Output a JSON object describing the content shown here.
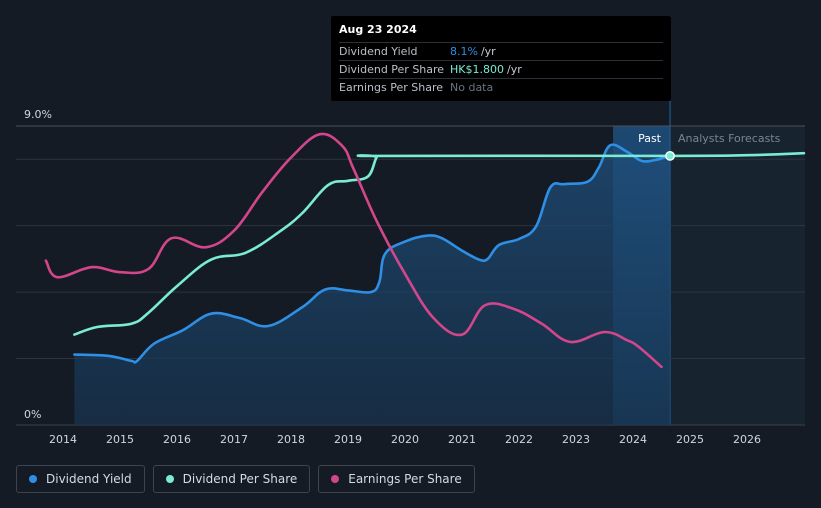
{
  "colors": {
    "background": "#151b24",
    "dividend_yield": "#2e8fe5",
    "dividend_per_share": "#79ecd3",
    "earnings_per_share": "#d3468b",
    "forecast_band": "#1a3d60"
  },
  "tooltip": {
    "date": "Aug 23 2024",
    "rows": [
      {
        "label": "Dividend Yield",
        "value": "8.1%",
        "unit": "/yr",
        "color": "#2e8fe5"
      },
      {
        "label": "Dividend Per Share",
        "value": "HK$1.800",
        "unit": "/yr",
        "color": "#79ecd3"
      },
      {
        "label": "Earnings Per Share",
        "value": "No data",
        "unit": "",
        "color": "#6b737d"
      }
    ]
  },
  "regions": {
    "past_label": "Past",
    "forecast_label": "Analysts Forecasts"
  },
  "legend": [
    {
      "label": "Dividend Yield",
      "color": "#2e8fe5"
    },
    {
      "label": "Dividend Per Share",
      "color": "#79ecd3"
    },
    {
      "label": "Earnings Per Share",
      "color": "#d3468b"
    }
  ],
  "chart_data": {
    "type": "line",
    "x_range": [
      2013.2,
      2027.0
    ],
    "y_range": [
      0,
      9
    ],
    "y_labels": [
      "9.0%",
      "0%"
    ],
    "x_ticks": [
      "2014",
      "2015",
      "2016",
      "2017",
      "2018",
      "2019",
      "2020",
      "2021",
      "2022",
      "2023",
      "2024",
      "2025",
      "2026"
    ],
    "highlight_from": 2023.65,
    "present_date": 2024.65,
    "series": [
      {
        "name": "Dividend Yield",
        "color": "#2e8fe5",
        "area": true,
        "points": [
          [
            2014.2,
            2.12
          ],
          [
            2014.8,
            2.08
          ],
          [
            2015.2,
            1.93
          ],
          [
            2015.3,
            1.93
          ],
          [
            2015.6,
            2.45
          ],
          [
            2016.1,
            2.85
          ],
          [
            2016.6,
            3.35
          ],
          [
            2017.1,
            3.22
          ],
          [
            2017.6,
            2.98
          ],
          [
            2018.2,
            3.55
          ],
          [
            2018.6,
            4.08
          ],
          [
            2019.0,
            4.05
          ],
          [
            2019.4,
            4.0
          ],
          [
            2019.55,
            4.3
          ],
          [
            2019.65,
            5.15
          ],
          [
            2020.0,
            5.52
          ],
          [
            2020.4,
            5.7
          ],
          [
            2020.65,
            5.62
          ],
          [
            2021.0,
            5.25
          ],
          [
            2021.3,
            4.98
          ],
          [
            2021.45,
            5.0
          ],
          [
            2021.65,
            5.42
          ],
          [
            2022.0,
            5.6
          ],
          [
            2022.3,
            5.98
          ],
          [
            2022.55,
            7.15
          ],
          [
            2022.8,
            7.25
          ],
          [
            2023.2,
            7.32
          ],
          [
            2023.4,
            7.75
          ],
          [
            2023.6,
            8.42
          ],
          [
            2023.9,
            8.22
          ],
          [
            2024.15,
            7.95
          ],
          [
            2024.4,
            7.98
          ],
          [
            2024.65,
            8.1
          ]
        ]
      },
      {
        "name": "Dividend Per Share",
        "color": "#79ecd3",
        "area": false,
        "points": [
          [
            2014.2,
            2.72
          ],
          [
            2014.6,
            2.95
          ],
          [
            2015.2,
            3.05
          ],
          [
            2015.5,
            3.38
          ],
          [
            2016.0,
            4.18
          ],
          [
            2016.6,
            4.98
          ],
          [
            2017.2,
            5.18
          ],
          [
            2017.8,
            5.82
          ],
          [
            2018.2,
            6.38
          ],
          [
            2018.65,
            7.22
          ],
          [
            2019.0,
            7.35
          ],
          [
            2019.35,
            7.48
          ],
          [
            2019.5,
            8.05
          ],
          [
            2019.6,
            8.1
          ],
          [
            2024.65,
            8.1
          ],
          [
            2026.0,
            8.12
          ],
          [
            2027.0,
            8.18
          ]
        ]
      },
      {
        "name": "Earnings Per Share",
        "color": "#d3468b",
        "area": false,
        "points": [
          [
            2013.7,
            4.95
          ],
          [
            2013.9,
            4.45
          ],
          [
            2014.5,
            4.75
          ],
          [
            2015.0,
            4.6
          ],
          [
            2015.5,
            4.7
          ],
          [
            2015.9,
            5.62
          ],
          [
            2016.5,
            5.35
          ],
          [
            2017.0,
            5.85
          ],
          [
            2017.5,
            7.02
          ],
          [
            2018.0,
            8.05
          ],
          [
            2018.5,
            8.75
          ],
          [
            2018.9,
            8.4
          ],
          [
            2019.1,
            7.7
          ],
          [
            2019.5,
            6.15
          ],
          [
            2020.0,
            4.55
          ],
          [
            2020.5,
            3.22
          ],
          [
            2021.0,
            2.72
          ],
          [
            2021.4,
            3.6
          ],
          [
            2021.9,
            3.5
          ],
          [
            2022.4,
            3.05
          ],
          [
            2022.9,
            2.5
          ],
          [
            2023.5,
            2.8
          ],
          [
            2023.9,
            2.55
          ],
          [
            2024.1,
            2.35
          ],
          [
            2024.5,
            1.75
          ]
        ]
      }
    ]
  }
}
